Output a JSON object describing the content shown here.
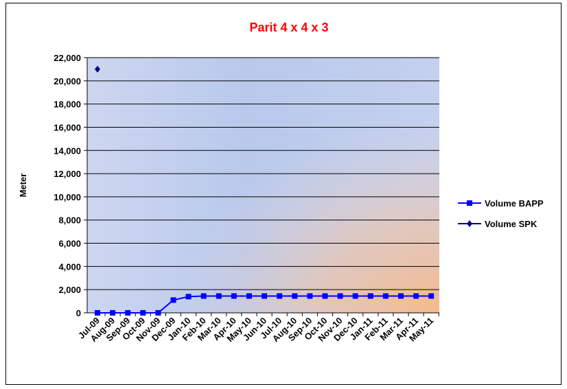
{
  "chart_data": {
    "type": "line",
    "title": "Parit 4 x 4 x 3",
    "title_color": "#ff0000",
    "xlabel": "",
    "ylabel": "Meter",
    "ylim": [
      0,
      22000
    ],
    "yticks": [
      "0",
      "2,000",
      "4,000",
      "6,000",
      "8,000",
      "10,000",
      "12,000",
      "14,000",
      "16,000",
      "18,000",
      "20,000",
      "22,000"
    ],
    "ytick_values": [
      0,
      2000,
      4000,
      6000,
      8000,
      10000,
      12000,
      14000,
      16000,
      18000,
      20000,
      22000
    ],
    "grid": true,
    "legend_position": "right",
    "categories": [
      "Jul-09",
      "Aug-09",
      "Sep-09",
      "Oct-09",
      "Nov-09",
      "Dec-09",
      "Jan-10",
      "Feb-10",
      "Mar-10",
      "Apr-10",
      "May-10",
      "Jun-10",
      "Jul-10",
      "Aug-10",
      "Sep-10",
      "Oct-10",
      "Nov-10",
      "Dec-10",
      "Jan-11",
      "Feb-11",
      "Mar-11",
      "Apr-11",
      "May-11"
    ],
    "series": [
      {
        "name": "Volume BAPP",
        "color": "#0000ff",
        "marker": "square",
        "values": [
          0,
          0,
          0,
          0,
          0,
          1100,
          1400,
          1450,
          1450,
          1450,
          1450,
          1450,
          1450,
          1450,
          1450,
          1450,
          1450,
          1450,
          1450,
          1450,
          1450,
          1450,
          1450
        ]
      },
      {
        "name": "Volume SPK",
        "color": "#000080",
        "marker": "diamond",
        "values": [
          21000,
          null,
          null,
          null,
          null,
          null,
          null,
          null,
          null,
          null,
          null,
          null,
          null,
          null,
          null,
          null,
          null,
          null,
          null,
          null,
          null,
          null,
          null
        ]
      }
    ]
  }
}
